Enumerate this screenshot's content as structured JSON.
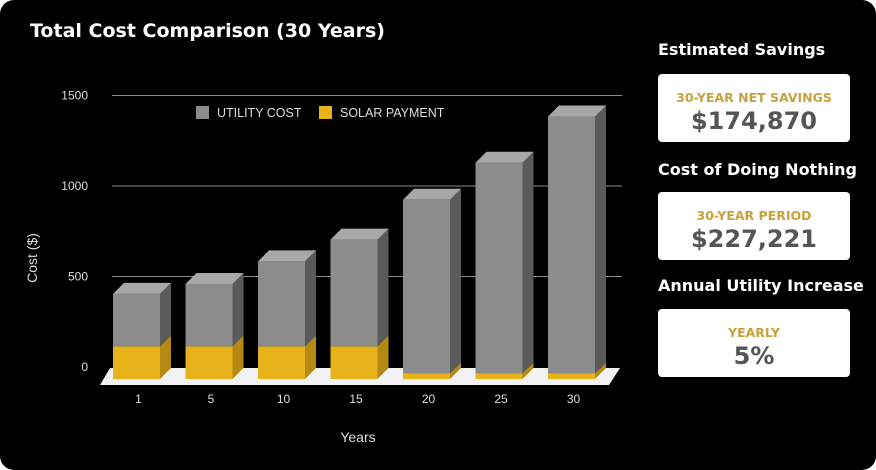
{
  "title": "Total Cost Comparison (30 Years)",
  "colors": {
    "utility_front": "#8c8c8c",
    "utility_top": "#a8a8a8",
    "utility_side": "#5a5a5a",
    "solar_front": "#e8b21a",
    "solar_top": "#f0c74a",
    "solar_side": "#b58a12",
    "label": "#c8a13a"
  },
  "chart_data": {
    "type": "bar",
    "stacked": true,
    "style": "3d",
    "categories": [
      "1",
      "5",
      "10",
      "15",
      "20",
      "25",
      "30"
    ],
    "series": [
      {
        "name": "SOLAR PAYMENT",
        "values": [
          180,
          180,
          180,
          180,
          30,
          30,
          30
        ]
      },
      {
        "name": "UTILITY COST",
        "values": [
          290,
          345,
          470,
          590,
          960,
          1165,
          1420
        ]
      }
    ],
    "legend": [
      "UTILITY COST",
      "SOLAR PAYMENT"
    ],
    "legend_position": "top",
    "xlabel": "Years",
    "ylabel": "Cost ($)",
    "yticks": [
      "0",
      "500",
      "1000",
      "1500"
    ],
    "ytick_values": [
      0,
      500,
      1000,
      1500
    ],
    "ylim": [
      0,
      1500
    ],
    "grid": true
  },
  "sidebar": {
    "savings_heading": "Estimated Savings",
    "savings_label": "30-YEAR NET SAVINGS",
    "savings_value": "$174,870",
    "nothing_heading": "Cost of Doing Nothing",
    "nothing_label": "30-YEAR PERIOD",
    "nothing_value": "$227,221",
    "increase_heading": "Annual Utility Increase",
    "increase_label": "YEARLY",
    "increase_value": "5%"
  }
}
